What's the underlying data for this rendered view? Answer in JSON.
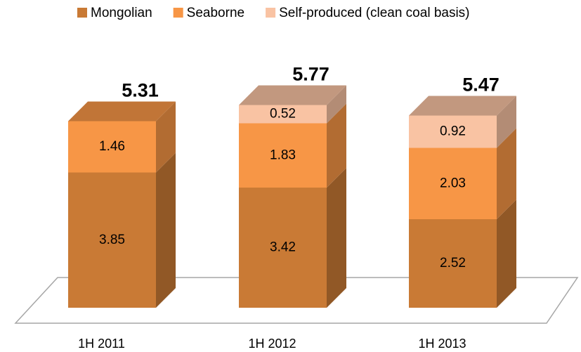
{
  "chart_data": {
    "type": "bar3d_stacked",
    "categories": [
      "1H 2011",
      "1H 2012",
      "1H 2013"
    ],
    "series": [
      {
        "name": "Mongolian",
        "color": "#c97a35",
        "values": [
          3.85,
          3.42,
          2.52
        ]
      },
      {
        "name": "Seaborne",
        "color": "#f79646",
        "values": [
          1.46,
          1.83,
          2.03
        ]
      },
      {
        "name": "Self-produced (clean coal basis)",
        "color": "#f9c3a3",
        "values": [
          null,
          0.52,
          0.92
        ]
      }
    ],
    "totals": [
      5.31,
      5.77,
      5.47
    ],
    "legend": "top"
  }
}
